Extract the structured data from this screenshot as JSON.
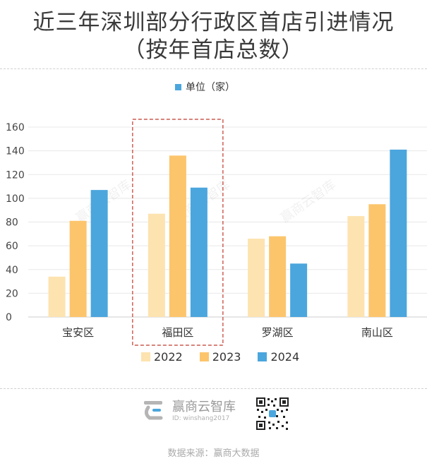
{
  "title_line1": "近三年深圳部分行政区首店引进情况",
  "title_line2": "（按年首店总数）",
  "unit_legend": "单位（家）",
  "brand": {
    "name": "赢商云智库",
    "id": "ID: winshang2017"
  },
  "watermark": "赢商云智库",
  "source": "数据来源：赢商大数据",
  "colors": {
    "2022": "#fde3b0",
    "2023": "#fcc56c",
    "2024": "#4ba6dd",
    "highlight_box": "#c0392b"
  },
  "chart_data": {
    "type": "bar",
    "categories": [
      "宝安区",
      "福田区",
      "罗湖区",
      "南山区"
    ],
    "series": [
      {
        "name": "2022",
        "values": [
          34,
          87,
          66,
          85
        ]
      },
      {
        "name": "2023",
        "values": [
          81,
          136,
          68,
          95
        ]
      },
      {
        "name": "2024",
        "values": [
          107,
          109,
          45,
          141
        ]
      }
    ],
    "ylim": [
      0,
      160
    ],
    "yticks": [
      0,
      20,
      40,
      60,
      80,
      100,
      120,
      140,
      160
    ],
    "grid": true,
    "legend_position": "bottom",
    "highlighted_category": "福田区"
  }
}
